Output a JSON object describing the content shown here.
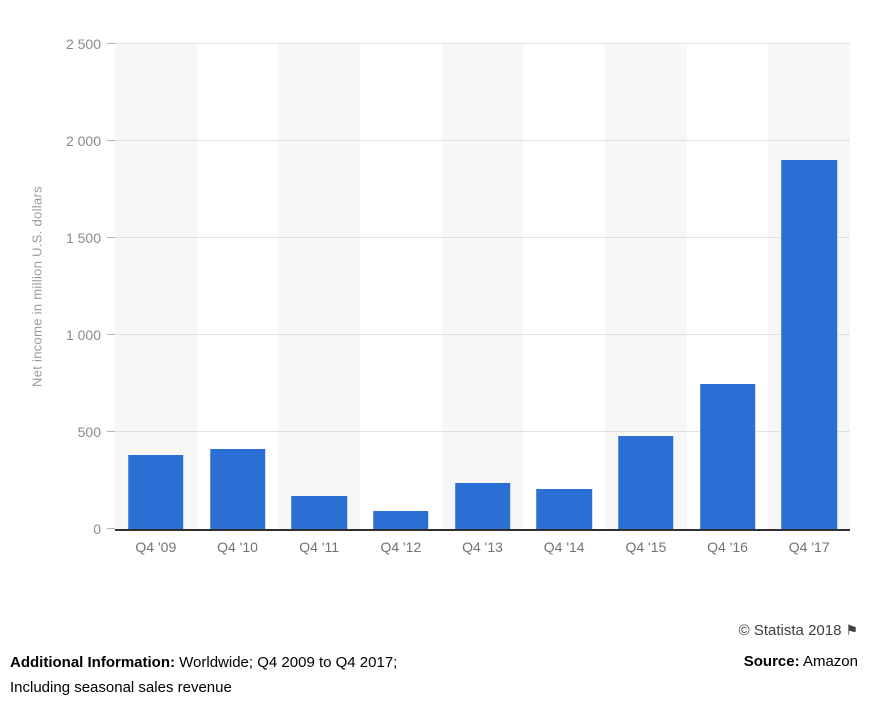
{
  "chart_data": {
    "type": "bar",
    "categories": [
      "Q4 '09",
      "Q4 '10",
      "Q4 '11",
      "Q4 '12",
      "Q4 '13",
      "Q4 '14",
      "Q4 '15",
      "Q4 '16",
      "Q4 '17"
    ],
    "values": [
      380,
      415,
      170,
      95,
      235,
      205,
      480,
      745,
      1900
    ],
    "title": "",
    "xlabel": "",
    "ylabel": "Net income in million U.S. dollars",
    "ylim": [
      0,
      2500
    ],
    "yticks": [
      0,
      500,
      1000,
      1500,
      2000,
      2500
    ],
    "ytick_labels": [
      "0",
      "500",
      "1 000",
      "1 500",
      "2 000",
      "2 500"
    ],
    "bar_color": "#2c6fd4",
    "stripe_color": "#f7f7f7",
    "grid": true,
    "legend": "none"
  },
  "footer": {
    "copyright": "© Statista 2018",
    "flag_icon": "⚑",
    "additional_label": "Additional Information:",
    "additional_text": " Worldwide; Q4 2009 to Q4 2017; Including seasonal sales revenue",
    "source_label": "Source:",
    "source_text": " Amazon"
  }
}
